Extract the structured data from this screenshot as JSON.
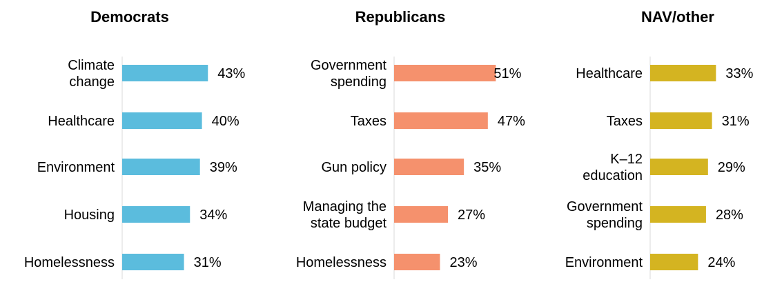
{
  "chart_data": [
    {
      "type": "bar",
      "orientation": "horizontal",
      "title": "Democrats",
      "color": "#5BBCDD",
      "categories": [
        "Climate\nchange",
        "Healthcare",
        "Environment",
        "Housing",
        "Homelessness"
      ],
      "values": [
        43,
        40,
        39,
        34,
        31
      ],
      "labels": [
        "43%",
        "40%",
        "39%",
        "34%",
        "31%"
      ]
    },
    {
      "type": "bar",
      "orientation": "horizontal",
      "title": "Republicans",
      "color": "#F5916D",
      "categories": [
        "Government\nspending",
        "Taxes",
        "Gun policy",
        "Managing the\nstate budget",
        "Homelessness"
      ],
      "values": [
        51,
        47,
        35,
        27,
        23
      ],
      "labels": [
        "51%",
        "47%",
        "35%",
        "27%",
        "23%"
      ]
    },
    {
      "type": "bar",
      "orientation": "horizontal",
      "title": "NAV/other",
      "color": "#D4B421",
      "categories": [
        "Healthcare",
        "Taxes",
        "K–12\neducation",
        "Government\nspending",
        "Environment"
      ],
      "values": [
        33,
        31,
        29,
        28,
        24
      ],
      "labels": [
        "33%",
        "31%",
        "29%",
        "28%",
        "24%"
      ]
    }
  ]
}
